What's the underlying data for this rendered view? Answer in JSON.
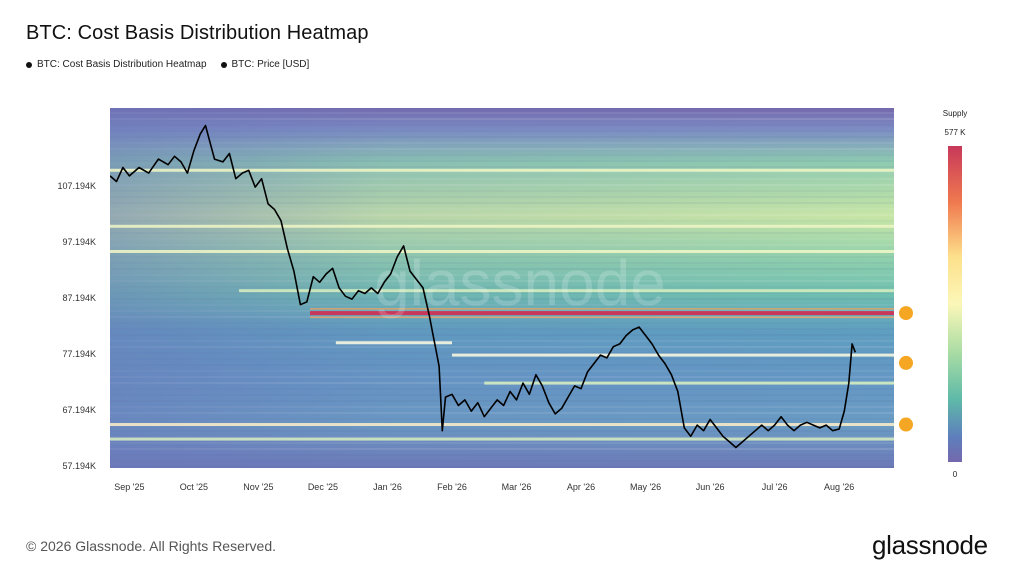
{
  "title": "BTC: Cost Basis Distribution Heatmap",
  "legend": [
    {
      "label": "BTC: Cost Basis Distribution Heatmap",
      "color": "#111111"
    },
    {
      "label": "BTC: Price [USD]",
      "color": "#111111"
    }
  ],
  "footer": "© 2026 Glassnode. All Rights Reserved.",
  "brand": "glassnode",
  "watermark": "glassnode",
  "colors": {
    "high": "#c8385a",
    "upper": "#f3a35d",
    "mid": "#fbf7b8",
    "lower": "#66c0a5",
    "low": "#5e7fbc",
    "lowest": "#7468ad",
    "markers": "#f5a623",
    "price_line": "#000000"
  },
  "chart_data": {
    "type": "heatmap",
    "title": "BTC: Cost Basis Distribution Heatmap",
    "y_ticks": [
      {
        "label": "107.194K",
        "value": 107194
      },
      {
        "label": "97.194K",
        "value": 97194
      },
      {
        "label": "87.194K",
        "value": 87194
      },
      {
        "label": "77.194K",
        "value": 77194
      },
      {
        "label": "67.194K",
        "value": 67194
      },
      {
        "label": "57.194K",
        "value": 57194
      }
    ],
    "x_ticks": [
      "Sep '25",
      "Oct '25",
      "Nov '25",
      "Dec '25",
      "Jan '26",
      "Feb '26",
      "Mar '26",
      "Apr '26",
      "May '26",
      "Jun '26",
      "Jul '26",
      "Aug '26"
    ],
    "ylim": [
      57194,
      120000
    ],
    "xlim": [
      0,
      12.15
    ],
    "colorbar": {
      "title": "Supply",
      "max_label": "577 K",
      "min_label": "0",
      "max": 577000,
      "min": 0
    },
    "bands": [
      {
        "price": 84500,
        "start": 3.1,
        "end": 12.15,
        "level": 1.0
      },
      {
        "price": 64600,
        "start": 0.0,
        "end": 12.15,
        "level": 0.85
      },
      {
        "price": 77000,
        "start": 5.3,
        "end": 12.15,
        "level": 0.7
      },
      {
        "price": 79200,
        "start": 3.5,
        "end": 5.3,
        "level": 0.65
      },
      {
        "price": 95500,
        "start": 0.0,
        "end": 12.15,
        "level": 0.55
      },
      {
        "price": 100000,
        "start": 0.0,
        "end": 12.15,
        "level": 0.5
      },
      {
        "price": 110000,
        "start": 0.0,
        "end": 12.15,
        "level": 0.55
      },
      {
        "price": 88500,
        "start": 2.0,
        "end": 12.15,
        "level": 0.45
      },
      {
        "price": 72000,
        "start": 5.8,
        "end": 12.15,
        "level": 0.45
      },
      {
        "price": 62000,
        "start": 0.0,
        "end": 12.15,
        "level": 0.4
      }
    ],
    "price_series": [
      {
        "x": 0.0,
        "y": 109000
      },
      {
        "x": 0.1,
        "y": 108000
      },
      {
        "x": 0.2,
        "y": 110500
      },
      {
        "x": 0.3,
        "y": 109000
      },
      {
        "x": 0.45,
        "y": 110500
      },
      {
        "x": 0.6,
        "y": 109500
      },
      {
        "x": 0.75,
        "y": 112000
      },
      {
        "x": 0.9,
        "y": 111000
      },
      {
        "x": 1.0,
        "y": 112500
      },
      {
        "x": 1.1,
        "y": 111500
      },
      {
        "x": 1.2,
        "y": 109500
      },
      {
        "x": 1.3,
        "y": 113500
      },
      {
        "x": 1.4,
        "y": 116500
      },
      {
        "x": 1.48,
        "y": 118000
      },
      {
        "x": 1.55,
        "y": 115000
      },
      {
        "x": 1.62,
        "y": 112000
      },
      {
        "x": 1.75,
        "y": 111500
      },
      {
        "x": 1.85,
        "y": 113000
      },
      {
        "x": 1.95,
        "y": 108500
      },
      {
        "x": 2.05,
        "y": 109500
      },
      {
        "x": 2.15,
        "y": 110000
      },
      {
        "x": 2.25,
        "y": 107000
      },
      {
        "x": 2.35,
        "y": 108500
      },
      {
        "x": 2.45,
        "y": 104000
      },
      {
        "x": 2.55,
        "y": 103000
      },
      {
        "x": 2.65,
        "y": 101000
      },
      {
        "x": 2.75,
        "y": 96000
      },
      {
        "x": 2.85,
        "y": 92000
      },
      {
        "x": 2.95,
        "y": 86000
      },
      {
        "x": 3.05,
        "y": 86500
      },
      {
        "x": 3.15,
        "y": 91000
      },
      {
        "x": 3.25,
        "y": 90000
      },
      {
        "x": 3.35,
        "y": 91500
      },
      {
        "x": 3.45,
        "y": 92500
      },
      {
        "x": 3.55,
        "y": 89000
      },
      {
        "x": 3.65,
        "y": 87500
      },
      {
        "x": 3.75,
        "y": 87000
      },
      {
        "x": 3.85,
        "y": 88500
      },
      {
        "x": 3.95,
        "y": 88000
      },
      {
        "x": 4.05,
        "y": 89000
      },
      {
        "x": 4.15,
        "y": 88000
      },
      {
        "x": 4.25,
        "y": 90000
      },
      {
        "x": 4.35,
        "y": 91500
      },
      {
        "x": 4.45,
        "y": 94500
      },
      {
        "x": 4.55,
        "y": 96500
      },
      {
        "x": 4.65,
        "y": 92000
      },
      {
        "x": 4.75,
        "y": 90500
      },
      {
        "x": 4.85,
        "y": 89000
      },
      {
        "x": 4.95,
        "y": 84000
      },
      {
        "x": 5.0,
        "y": 81000
      },
      {
        "x": 5.05,
        "y": 78000
      },
      {
        "x": 5.1,
        "y": 75000
      },
      {
        "x": 5.15,
        "y": 63500
      },
      {
        "x": 5.2,
        "y": 69500
      },
      {
        "x": 5.3,
        "y": 70000
      },
      {
        "x": 5.4,
        "y": 68000
      },
      {
        "x": 5.5,
        "y": 69000
      },
      {
        "x": 5.6,
        "y": 67000
      },
      {
        "x": 5.7,
        "y": 68500
      },
      {
        "x": 5.8,
        "y": 66000
      },
      {
        "x": 5.9,
        "y": 67500
      },
      {
        "x": 6.0,
        "y": 69000
      },
      {
        "x": 6.1,
        "y": 68000
      },
      {
        "x": 6.2,
        "y": 70500
      },
      {
        "x": 6.3,
        "y": 69000
      },
      {
        "x": 6.4,
        "y": 72000
      },
      {
        "x": 6.5,
        "y": 70000
      },
      {
        "x": 6.6,
        "y": 73500
      },
      {
        "x": 6.7,
        "y": 71500
      },
      {
        "x": 6.8,
        "y": 68500
      },
      {
        "x": 6.9,
        "y": 66500
      },
      {
        "x": 7.0,
        "y": 67500
      },
      {
        "x": 7.1,
        "y": 69500
      },
      {
        "x": 7.2,
        "y": 71500
      },
      {
        "x": 7.3,
        "y": 71000
      },
      {
        "x": 7.4,
        "y": 74000
      },
      {
        "x": 7.5,
        "y": 75500
      },
      {
        "x": 7.6,
        "y": 77000
      },
      {
        "x": 7.7,
        "y": 76500
      },
      {
        "x": 7.8,
        "y": 78500
      },
      {
        "x": 7.9,
        "y": 79000
      },
      {
        "x": 8.0,
        "y": 80500
      },
      {
        "x": 8.1,
        "y": 81500
      },
      {
        "x": 8.2,
        "y": 82000
      },
      {
        "x": 8.3,
        "y": 80500
      },
      {
        "x": 8.4,
        "y": 79000
      },
      {
        "x": 8.5,
        "y": 77000
      },
      {
        "x": 8.6,
        "y": 75500
      },
      {
        "x": 8.7,
        "y": 73500
      },
      {
        "x": 8.8,
        "y": 70500
      },
      {
        "x": 8.9,
        "y": 64000
      },
      {
        "x": 9.0,
        "y": 62500
      },
      {
        "x": 9.1,
        "y": 64500
      },
      {
        "x": 9.2,
        "y": 63500
      },
      {
        "x": 9.3,
        "y": 65500
      },
      {
        "x": 9.4,
        "y": 64000
      },
      {
        "x": 9.5,
        "y": 62500
      },
      {
        "x": 9.6,
        "y": 61500
      },
      {
        "x": 9.7,
        "y": 60500
      },
      {
        "x": 9.8,
        "y": 61500
      },
      {
        "x": 9.9,
        "y": 62500
      },
      {
        "x": 10.0,
        "y": 63500
      },
      {
        "x": 10.1,
        "y": 64500
      },
      {
        "x": 10.2,
        "y": 63500
      },
      {
        "x": 10.3,
        "y": 64500
      },
      {
        "x": 10.4,
        "y": 66000
      },
      {
        "x": 10.5,
        "y": 64500
      },
      {
        "x": 10.6,
        "y": 63500
      },
      {
        "x": 10.7,
        "y": 64500
      },
      {
        "x": 10.8,
        "y": 65000
      },
      {
        "x": 10.9,
        "y": 64500
      },
      {
        "x": 11.0,
        "y": 64000
      },
      {
        "x": 11.1,
        "y": 64500
      },
      {
        "x": 11.2,
        "y": 63500
      },
      {
        "x": 11.3,
        "y": 63800
      },
      {
        "x": 11.38,
        "y": 67000
      },
      {
        "x": 11.45,
        "y": 72000
      },
      {
        "x": 11.5,
        "y": 79000
      },
      {
        "x": 11.55,
        "y": 77500
      }
    ],
    "markers": [
      {
        "x": 11.82,
        "y": 84500
      },
      {
        "x": 11.82,
        "y": 75600
      },
      {
        "x": 11.82,
        "y": 64600
      }
    ]
  }
}
